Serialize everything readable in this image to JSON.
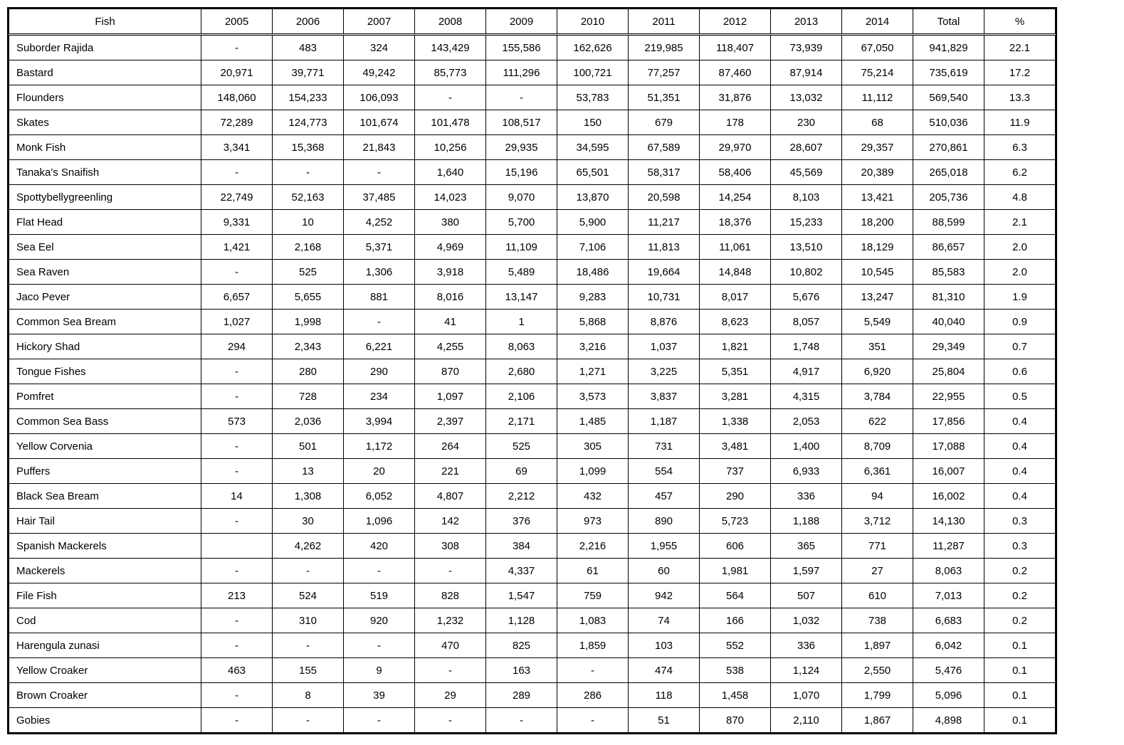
{
  "table": {
    "columns": [
      "Fish",
      "2005",
      "2006",
      "2007",
      "2008",
      "2009",
      "2010",
      "2011",
      "2012",
      "2013",
      "2014",
      "Total",
      "%"
    ],
    "col_align": [
      "left",
      "center",
      "center",
      "center",
      "center",
      "center",
      "center",
      "center",
      "center",
      "center",
      "center",
      "center",
      "center"
    ],
    "font_size_pt": 11,
    "border_color": "#000000",
    "background_color": "#ffffff",
    "text_color": "#000000",
    "rows": [
      [
        "Suborder Rajida",
        "-",
        "483",
        "324",
        "143,429",
        "155,586",
        "162,626",
        "219,985",
        "118,407",
        "73,939",
        "67,050",
        "941,829",
        "22.1"
      ],
      [
        "Bastard",
        "20,971",
        "39,771",
        "49,242",
        "85,773",
        "111,296",
        "100,721",
        "77,257",
        "87,460",
        "87,914",
        "75,214",
        "735,619",
        "17.2"
      ],
      [
        "Flounders",
        "148,060",
        "154,233",
        "106,093",
        "-",
        "-",
        "53,783",
        "51,351",
        "31,876",
        "13,032",
        "11,112",
        "569,540",
        "13.3"
      ],
      [
        "Skates",
        "72,289",
        "124,773",
        "101,674",
        "101,478",
        "108,517",
        "150",
        "679",
        "178",
        "230",
        "68",
        "510,036",
        "11.9"
      ],
      [
        "Monk Fish",
        "3,341",
        "15,368",
        "21,843",
        "10,256",
        "29,935",
        "34,595",
        "67,589",
        "29,970",
        "28,607",
        "29,357",
        "270,861",
        "6.3"
      ],
      [
        "Tanaka's Snaifish",
        "-",
        "-",
        "-",
        "1,640",
        "15,196",
        "65,501",
        "58,317",
        "58,406",
        "45,569",
        "20,389",
        "265,018",
        "6.2"
      ],
      [
        "Spottybellygreenling",
        "22,749",
        "52,163",
        "37,485",
        "14,023",
        "9,070",
        "13,870",
        "20,598",
        "14,254",
        "8,103",
        "13,421",
        "205,736",
        "4.8"
      ],
      [
        "Flat Head",
        "9,331",
        "10",
        "4,252",
        "380",
        "5,700",
        "5,900",
        "11,217",
        "18,376",
        "15,233",
        "18,200",
        "88,599",
        "2.1"
      ],
      [
        "Sea Eel",
        "1,421",
        "2,168",
        "5,371",
        "4,969",
        "11,109",
        "7,106",
        "11,813",
        "11,061",
        "13,510",
        "18,129",
        "86,657",
        "2.0"
      ],
      [
        "Sea Raven",
        "-",
        "525",
        "1,306",
        "3,918",
        "5,489",
        "18,486",
        "19,664",
        "14,848",
        "10,802",
        "10,545",
        "85,583",
        "2.0"
      ],
      [
        "Jaco Pever",
        "6,657",
        "5,655",
        "881",
        "8,016",
        "13,147",
        "9,283",
        "10,731",
        "8,017",
        "5,676",
        "13,247",
        "81,310",
        "1.9"
      ],
      [
        "Common Sea Bream",
        "1,027",
        "1,998",
        "-",
        "41",
        "1",
        "5,868",
        "8,876",
        "8,623",
        "8,057",
        "5,549",
        "40,040",
        "0.9"
      ],
      [
        "Hickory Shad",
        "294",
        "2,343",
        "6,221",
        "4,255",
        "8,063",
        "3,216",
        "1,037",
        "1,821",
        "1,748",
        "351",
        "29,349",
        "0.7"
      ],
      [
        "Tongue Fishes",
        "-",
        "280",
        "290",
        "870",
        "2,680",
        "1,271",
        "3,225",
        "5,351",
        "4,917",
        "6,920",
        "25,804",
        "0.6"
      ],
      [
        "Pomfret",
        "-",
        "728",
        "234",
        "1,097",
        "2,106",
        "3,573",
        "3,837",
        "3,281",
        "4,315",
        "3,784",
        "22,955",
        "0.5"
      ],
      [
        "Common Sea Bass",
        "573",
        "2,036",
        "3,994",
        "2,397",
        "2,171",
        "1,485",
        "1,187",
        "1,338",
        "2,053",
        "622",
        "17,856",
        "0.4"
      ],
      [
        "Yellow Corvenia",
        "-",
        "501",
        "1,172",
        "264",
        "525",
        "305",
        "731",
        "3,481",
        "1,400",
        "8,709",
        "17,088",
        "0.4"
      ],
      [
        "Puffers",
        "-",
        "13",
        "20",
        "221",
        "69",
        "1,099",
        "554",
        "737",
        "6,933",
        "6,361",
        "16,007",
        "0.4"
      ],
      [
        "Black Sea Bream",
        "14",
        "1,308",
        "6,052",
        "4,807",
        "2,212",
        "432",
        "457",
        "290",
        "336",
        "94",
        "16,002",
        "0.4"
      ],
      [
        "Hair Tail",
        "-",
        "30",
        "1,096",
        "142",
        "376",
        "973",
        "890",
        "5,723",
        "1,188",
        "3,712",
        "14,130",
        "0.3"
      ],
      [
        "Spanish Mackerels",
        "",
        "4,262",
        "420",
        "308",
        "384",
        "2,216",
        "1,955",
        "606",
        "365",
        "771",
        "11,287",
        "0.3"
      ],
      [
        "Mackerels",
        "-",
        "-",
        "-",
        "-",
        "4,337",
        "61",
        "60",
        "1,981",
        "1,597",
        "27",
        "8,063",
        "0.2"
      ],
      [
        "File Fish",
        "213",
        "524",
        "519",
        "828",
        "1,547",
        "759",
        "942",
        "564",
        "507",
        "610",
        "7,013",
        "0.2"
      ],
      [
        "Cod",
        "-",
        "310",
        "920",
        "1,232",
        "1,128",
        "1,083",
        "74",
        "166",
        "1,032",
        "738",
        "6,683",
        "0.2"
      ],
      [
        "Harengula zunasi",
        "-",
        "-",
        "-",
        "470",
        "825",
        "1,859",
        "103",
        "552",
        "336",
        "1,897",
        "6,042",
        "0.1"
      ],
      [
        "Yellow Croaker",
        "463",
        "155",
        "9",
        "-",
        "163",
        "-",
        "474",
        "538",
        "1,124",
        "2,550",
        "5,476",
        "0.1"
      ],
      [
        "Brown Croaker",
        "-",
        "8",
        "39",
        "29",
        "289",
        "286",
        "118",
        "1,458",
        "1,070",
        "1,799",
        "5,096",
        "0.1"
      ],
      [
        "Gobies",
        "-",
        "-",
        "-",
        "-",
        "-",
        "-",
        "51",
        "870",
        "2,110",
        "1,867",
        "4,898",
        "0.1"
      ]
    ]
  }
}
